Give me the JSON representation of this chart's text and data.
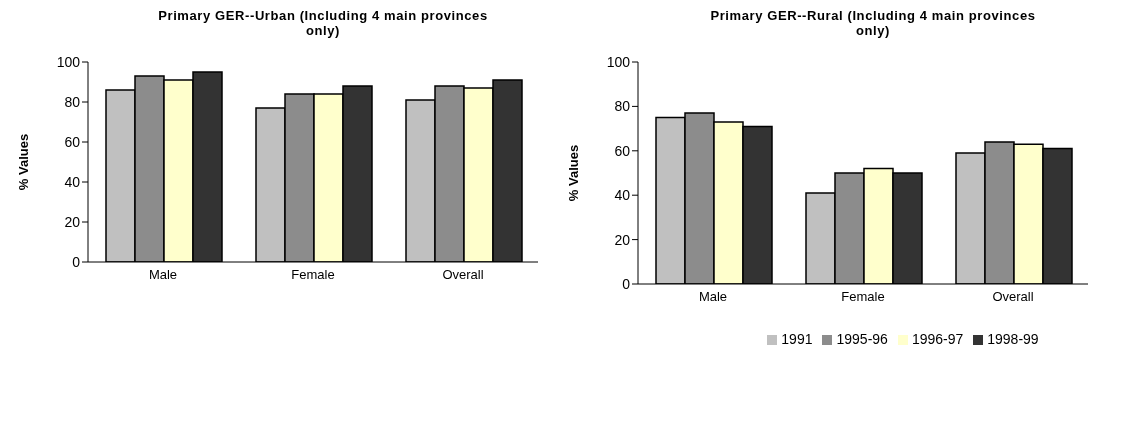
{
  "chart_data": [
    {
      "type": "bar",
      "title": "Primary GER--Urban (Including 4 main provinces only)",
      "ylabel": "% Values",
      "categories": [
        "Male",
        "Female",
        "Overall"
      ],
      "ylim": [
        0,
        100
      ],
      "yticks": [
        0,
        20,
        40,
        60,
        80,
        100
      ],
      "legend": false,
      "series": [
        {
          "color": "#c0c0c0",
          "values": [
            86,
            77,
            81
          ]
        },
        {
          "color": "#8c8c8c",
          "values": [
            93,
            84,
            88
          ]
        },
        {
          "color": "#ffffcc",
          "values": [
            91,
            84,
            87
          ]
        },
        {
          "color": "#333333",
          "values": [
            95,
            88,
            91
          ]
        }
      ]
    },
    {
      "type": "bar",
      "title": "Primary GER--Rural (Including 4 main provinces only)",
      "ylabel": "% Values",
      "categories": [
        "Male",
        "Female",
        "Overall"
      ],
      "ylim": [
        0,
        100
      ],
      "yticks": [
        0,
        20,
        40,
        60,
        80,
        100
      ],
      "legend": "bottom",
      "series": [
        {
          "name": "1991",
          "color": "#c0c0c0",
          "values": [
            75,
            41,
            59
          ]
        },
        {
          "name": "1995-96",
          "color": "#8c8c8c",
          "values": [
            77,
            50,
            64
          ]
        },
        {
          "name": "1996-97",
          "color": "#ffffcc",
          "values": [
            73,
            52,
            63
          ]
        },
        {
          "name": "1998-99",
          "color": "#333333",
          "values": [
            71,
            50,
            61
          ]
        }
      ]
    }
  ]
}
